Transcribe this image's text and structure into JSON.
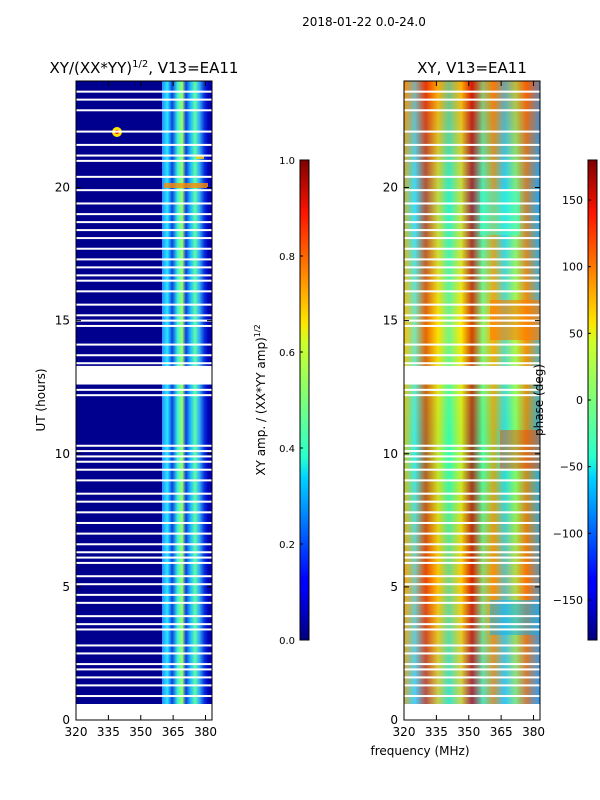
{
  "figure_title": "2018-01-22 0.0-24.0",
  "shared_xlabel": "frequency (MHz)",
  "chart_data": [
    {
      "type": "heatmap",
      "title_main": "XY/(XX*YY)",
      "title_exp": "1/2",
      "title_tail": ", V13=EA11",
      "xlabel": "",
      "ylabel": "UT (hours)",
      "xlim": [
        320,
        383
      ],
      "ylim": [
        0,
        24
      ],
      "x_ticks": [
        320,
        335,
        350,
        365,
        380
      ],
      "y_ticks": [
        0,
        5,
        10,
        15,
        20
      ],
      "colorbar": {
        "label_main": "XY amp. / (XX*YY amp)",
        "label_exp": "1/2",
        "range": [
          0.0,
          1.0
        ],
        "ticks": [
          "0.0",
          "0.2",
          "0.4",
          "0.6",
          "0.8",
          "1.0"
        ]
      },
      "colormap": "jet",
      "data_coverage_hours": [
        0.6,
        24
      ]
    },
    {
      "type": "heatmap",
      "title_main": "XY, V13=EA11",
      "xlabel": "frequency (MHz)",
      "ylabel": "",
      "xlim": [
        320,
        383
      ],
      "ylim": [
        0,
        24
      ],
      "x_ticks": [
        320,
        335,
        350,
        365,
        380
      ],
      "y_ticks": [
        0,
        5,
        10,
        15,
        20
      ],
      "colorbar": {
        "label": "phase (deg)",
        "range": [
          -180,
          180
        ],
        "ticks": [
          "−150",
          "−100",
          "−50",
          "0",
          "50",
          "100",
          "150"
        ]
      },
      "colormap": "jet",
      "data_coverage_hours": [
        0.6,
        24
      ]
    }
  ],
  "gap_hours": [
    0.9,
    1.3,
    1.6,
    1.9,
    2.1,
    2.5,
    2.8,
    3.4,
    3.6,
    3.9,
    4.4,
    4.7,
    5.1,
    5.4,
    5.9,
    6.1,
    6.3,
    6.6,
    7.0,
    7.4,
    7.8,
    8.2,
    8.5,
    9.0,
    9.4,
    9.7,
    9.9,
    10.1,
    10.3,
    12.2,
    12.4,
    13.4,
    13.7,
    14.1,
    14.8,
    15.0,
    15.2,
    15.6,
    16.1,
    16.5,
    16.7,
    17.0,
    17.3,
    17.7,
    18.1,
    18.4,
    18.7,
    19.0,
    19.4,
    19.9,
    20.4,
    21.0,
    21.2,
    21.6,
    22.1,
    22.9,
    23.3,
    23.6
  ],
  "big_gap_hours": [
    12.6,
    13.3
  ]
}
